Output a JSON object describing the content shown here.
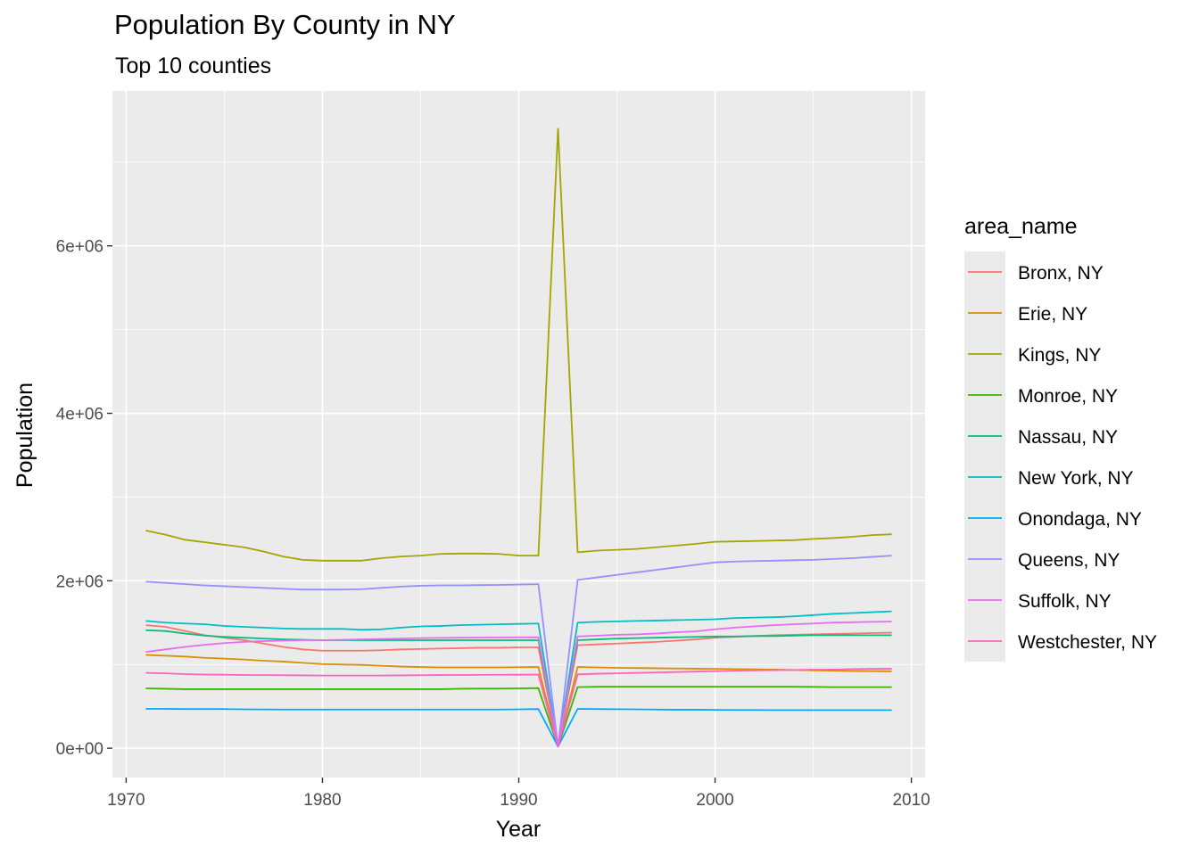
{
  "chart_data": {
    "type": "line",
    "title": "Population By County in NY",
    "subtitle": "Top 10 counties",
    "xlabel": "Year",
    "ylabel": "Population",
    "xlim": [
      1969.3,
      2010.7
    ],
    "ylim": [
      -350000,
      7850000
    ],
    "x_ticks": [
      1970,
      1980,
      1990,
      2000,
      2010
    ],
    "x_tick_labels": [
      "1970",
      "1980",
      "1990",
      "2000",
      "2010"
    ],
    "y_ticks": [
      0,
      2000000,
      4000000,
      6000000
    ],
    "y_tick_labels": [
      "0e+00",
      "2e+06",
      "4e+06",
      "6e+06"
    ],
    "grid": true,
    "legend_title": "area_name",
    "legend_position": "right",
    "x": [
      1971,
      1972,
      1973,
      1974,
      1975,
      1976,
      1977,
      1978,
      1979,
      1980,
      1981,
      1982,
      1983,
      1984,
      1985,
      1986,
      1987,
      1988,
      1989,
      1990,
      1991,
      1992,
      1993,
      1994,
      1995,
      1996,
      1997,
      1998,
      1999,
      2000,
      2001,
      2002,
      2003,
      2004,
      2005,
      2006,
      2007,
      2008,
      2009
    ],
    "series": [
      {
        "name": "Bronx, NY",
        "color": "#F8766D",
        "values": [
          1470000,
          1450000,
          1400000,
          1350000,
          1320000,
          1290000,
          1250000,
          1210000,
          1180000,
          1165000,
          1165000,
          1165000,
          1170000,
          1180000,
          1185000,
          1190000,
          1195000,
          1200000,
          1200000,
          1205000,
          1205000,
          20000,
          1230000,
          1240000,
          1250000,
          1260000,
          1270000,
          1285000,
          1300000,
          1320000,
          1330000,
          1340000,
          1350000,
          1355000,
          1360000,
          1365000,
          1370000,
          1375000,
          1380000
        ]
      },
      {
        "name": "Erie, NY",
        "color": "#D89000",
        "values": [
          1115000,
          1105000,
          1095000,
          1080000,
          1070000,
          1060000,
          1045000,
          1035000,
          1020000,
          1005000,
          1000000,
          995000,
          985000,
          975000,
          970000,
          965000,
          965000,
          965000,
          965000,
          968000,
          970000,
          20000,
          970000,
          965000,
          960000,
          958000,
          955000,
          952000,
          950000,
          948000,
          945000,
          942000,
          940000,
          935000,
          930000,
          925000,
          922000,
          920000,
          918000
        ]
      },
      {
        "name": "Kings, NY",
        "color": "#A3A500",
        "values": [
          2600000,
          2550000,
          2490000,
          2460000,
          2430000,
          2400000,
          2350000,
          2290000,
          2250000,
          2240000,
          2240000,
          2240000,
          2270000,
          2290000,
          2300000,
          2320000,
          2325000,
          2325000,
          2320000,
          2300000,
          2300000,
          7400000,
          2340000,
          2360000,
          2370000,
          2380000,
          2400000,
          2420000,
          2440000,
          2465000,
          2470000,
          2475000,
          2480000,
          2485000,
          2500000,
          2510000,
          2525000,
          2545000,
          2555000
        ]
      },
      {
        "name": "Monroe, NY",
        "color": "#39B600",
        "values": [
          715000,
          710000,
          705000,
          705000,
          705000,
          705000,
          705000,
          705000,
          705000,
          705000,
          705000,
          705000,
          705000,
          705000,
          705000,
          705000,
          710000,
          712000,
          712000,
          715000,
          718000,
          20000,
          730000,
          735000,
          735000,
          735000,
          735000,
          735000,
          735000,
          735000,
          735000,
          735000,
          735000,
          735000,
          733000,
          730000,
          730000,
          730000,
          730000
        ]
      },
      {
        "name": "Nassau, NY",
        "color": "#00BF7D",
        "values": [
          1410000,
          1400000,
          1370000,
          1345000,
          1330000,
          1320000,
          1310000,
          1300000,
          1295000,
          1290000,
          1290000,
          1290000,
          1290000,
          1290000,
          1290000,
          1290000,
          1290000,
          1290000,
          1290000,
          1290000,
          1290000,
          20000,
          1290000,
          1300000,
          1310000,
          1315000,
          1320000,
          1325000,
          1330000,
          1335000,
          1335000,
          1340000,
          1340000,
          1345000,
          1350000,
          1350000,
          1350000,
          1350000,
          1350000
        ]
      },
      {
        "name": "New York, NY",
        "color": "#00BFC4",
        "values": [
          1520000,
          1500000,
          1490000,
          1480000,
          1460000,
          1450000,
          1440000,
          1430000,
          1425000,
          1425000,
          1425000,
          1415000,
          1420000,
          1440000,
          1455000,
          1460000,
          1470000,
          1475000,
          1480000,
          1485000,
          1490000,
          20000,
          1500000,
          1510000,
          1515000,
          1520000,
          1525000,
          1530000,
          1535000,
          1540000,
          1555000,
          1560000,
          1565000,
          1575000,
          1590000,
          1605000,
          1615000,
          1625000,
          1635000
        ]
      },
      {
        "name": "Onondaga, NY",
        "color": "#00A9FF",
        "values": [
          470000,
          470000,
          468000,
          468000,
          468000,
          465000,
          463000,
          462000,
          462000,
          462000,
          462000,
          462000,
          462000,
          462000,
          462000,
          462000,
          462000,
          462000,
          462000,
          465000,
          468000,
          20000,
          470000,
          468000,
          466000,
          465000,
          462000,
          460000,
          460000,
          458000,
          457000,
          457000,
          455000,
          455000,
          455000,
          455000,
          455000,
          455000,
          455000
        ]
      },
      {
        "name": "Queens, NY",
        "color": "#9590FF",
        "values": [
          1990000,
          1975000,
          1960000,
          1945000,
          1935000,
          1925000,
          1915000,
          1905000,
          1895000,
          1895000,
          1895000,
          1900000,
          1915000,
          1930000,
          1940000,
          1945000,
          1945000,
          1948000,
          1950000,
          1955000,
          1960000,
          20000,
          2010000,
          2040000,
          2070000,
          2100000,
          2130000,
          2160000,
          2190000,
          2220000,
          2230000,
          2235000,
          2240000,
          2245000,
          2250000,
          2260000,
          2270000,
          2285000,
          2300000
        ]
      },
      {
        "name": "Suffolk, NY",
        "color": "#E76BF3",
        "values": [
          1150000,
          1180000,
          1210000,
          1235000,
          1255000,
          1270000,
          1280000,
          1285000,
          1290000,
          1290000,
          1295000,
          1300000,
          1305000,
          1310000,
          1315000,
          1318000,
          1320000,
          1322000,
          1323000,
          1324000,
          1325000,
          20000,
          1335000,
          1345000,
          1355000,
          1360000,
          1370000,
          1385000,
          1395000,
          1420000,
          1440000,
          1455000,
          1470000,
          1480000,
          1490000,
          1500000,
          1505000,
          1510000,
          1512000
        ]
      },
      {
        "name": "Westchester, NY",
        "color": "#FF62BC",
        "values": [
          900000,
          895000,
          885000,
          880000,
          878000,
          875000,
          873000,
          872000,
          870000,
          868000,
          868000,
          868000,
          868000,
          870000,
          872000,
          874000,
          875000,
          876000,
          877000,
          878000,
          880000,
          20000,
          882000,
          890000,
          895000,
          900000,
          905000,
          910000,
          915000,
          920000,
          925000,
          930000,
          932000,
          935000,
          938000,
          940000,
          945000,
          948000,
          950000
        ]
      }
    ]
  }
}
